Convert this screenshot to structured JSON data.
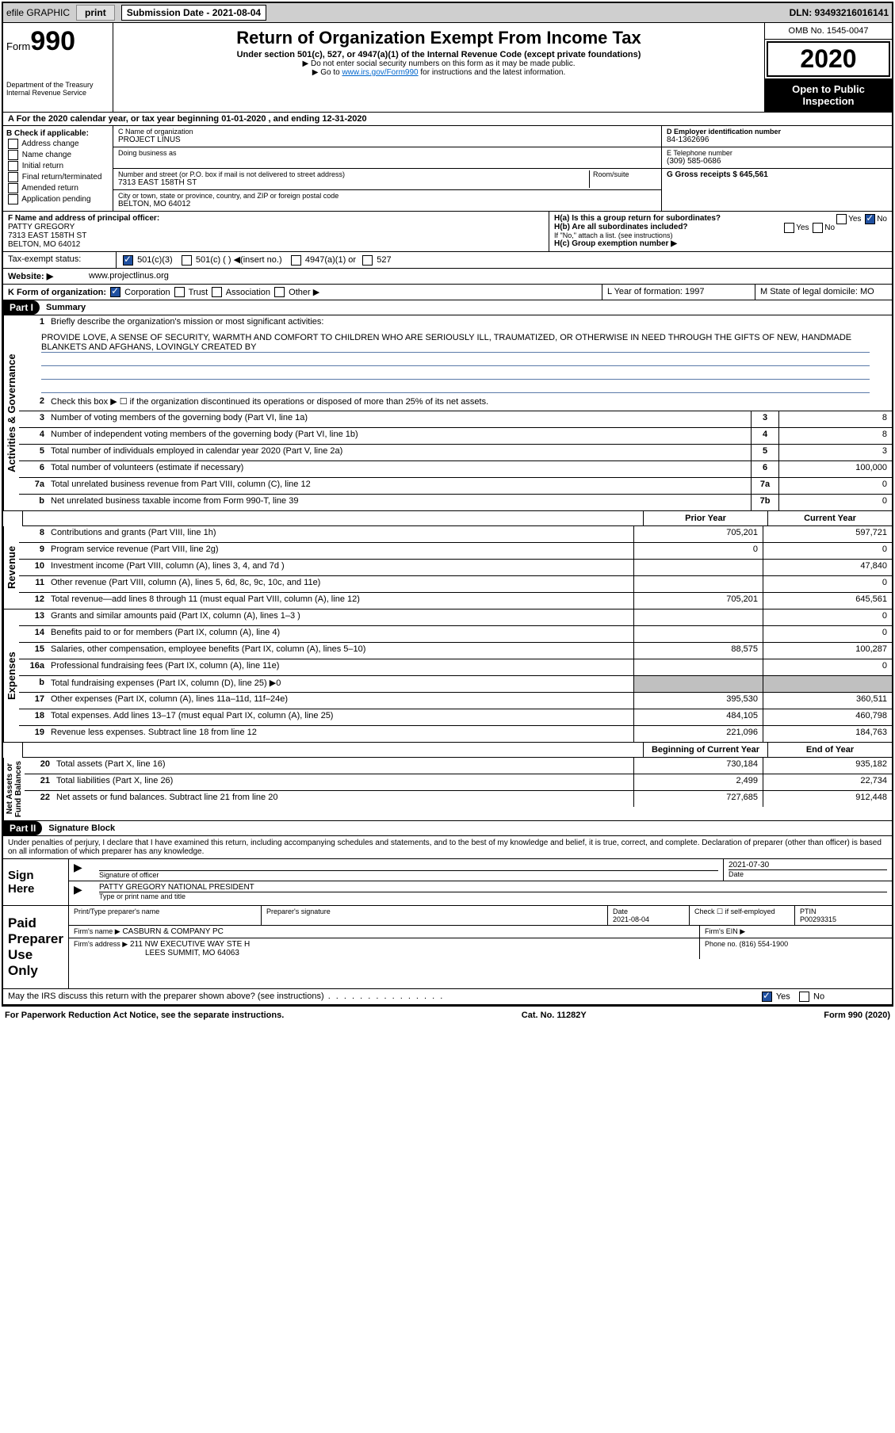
{
  "top_bar": {
    "efile_label": "efile GRAPHIC",
    "print_btn": "print",
    "sub_date_label": "Submission Date - 2021-08-04",
    "dln": "DLN: 93493216016141"
  },
  "header": {
    "form_label": "Form",
    "form_num": "990",
    "dept": "Department of the Treasury",
    "irs": "Internal Revenue Service",
    "title": "Return of Organization Exempt From Income Tax",
    "subtitle": "Under section 501(c), 527, or 4947(a)(1) of the Internal Revenue Code (except private foundations)",
    "note1": "▶ Do not enter social security numbers on this form as it may be made public.",
    "note2_pre": "▶ Go to ",
    "note2_link": "www.irs.gov/Form990",
    "note2_post": " for instructions and the latest information.",
    "omb": "OMB No. 1545-0047",
    "year": "2020",
    "open_insp": "Open to Public Inspection"
  },
  "row_a": "A For the 2020 calendar year, or tax year beginning 01-01-2020   , and ending 12-31-2020",
  "box_b": {
    "label": "B Check if applicable:",
    "opts": [
      "Address change",
      "Name change",
      "Initial return",
      "Final return/terminated",
      "Amended return",
      "Application pending"
    ]
  },
  "box_c": {
    "c_label": "C Name of organization",
    "c_val": "PROJECT LINUS",
    "dba_label": "Doing business as",
    "dba_val": "",
    "addr_label": "Number and street (or P.O. box if mail is not delivered to street address)",
    "room_label": "Room/suite",
    "addr_val": "7313 EAST 158TH ST",
    "city_label": "City or town, state or province, country, and ZIP or foreign postal code",
    "city_val": "BELTON, MO  64012"
  },
  "box_d": {
    "label": "D Employer identification number",
    "val": "84-1362696"
  },
  "box_e": {
    "label": "E Telephone number",
    "val": "(309) 585-0686"
  },
  "box_g": {
    "label": "G Gross receipts $ 645,561"
  },
  "box_f": {
    "label": "F  Name and address of principal officer:",
    "name": "PATTY GREGORY",
    "addr1": "7313 EAST 158TH ST",
    "addr2": "BELTON, MO  64012"
  },
  "box_h": {
    "ha": "H(a)  Is this a group return for subordinates?",
    "ha_yes": "Yes",
    "ha_no": "No",
    "hb": "H(b)  Are all subordinates included?",
    "hb_note": "If \"No,\" attach a list. (see instructions)",
    "hc": "H(c)  Group exemption number ▶"
  },
  "tax_status": {
    "label": "Tax-exempt status:",
    "c3": "501(c)(3)",
    "c_other": "501(c) (  ) ◀(insert no.)",
    "a1": "4947(a)(1) or",
    "s527": "527"
  },
  "website": {
    "label": "Website: ▶",
    "val": "www.projectlinus.org"
  },
  "row_k": {
    "label": "K Form of organization:",
    "corp": "Corporation",
    "trust": "Trust",
    "assoc": "Association",
    "other": "Other ▶"
  },
  "row_l": {
    "label": "L Year of formation: 1997"
  },
  "row_m": {
    "label": "M State of legal domicile: MO"
  },
  "part1": {
    "hdr": "Part I",
    "title": "Summary"
  },
  "mission": {
    "num": "1",
    "label": "Briefly describe the organization's mission or most significant activities:",
    "text": "PROVIDE LOVE, A SENSE OF SECURITY, WARMTH AND COMFORT TO CHILDREN WHO ARE SERIOUSLY ILL, TRAUMATIZED, OR OTHERWISE IN NEED THROUGH THE GIFTS OF NEW, HANDMADE BLANKETS AND AFGHANS, LOVINGLY CREATED BY"
  },
  "gov_lines": [
    {
      "n": "2",
      "d": "Check this box ▶ ☐  if the organization discontinued its operations or disposed of more than 25% of its net assets."
    },
    {
      "n": "3",
      "d": "Number of voting members of the governing body (Part VI, line 1a)",
      "box": "3",
      "v": "8"
    },
    {
      "n": "4",
      "d": "Number of independent voting members of the governing body (Part VI, line 1b)",
      "box": "4",
      "v": "8"
    },
    {
      "n": "5",
      "d": "Total number of individuals employed in calendar year 2020 (Part V, line 2a)",
      "box": "5",
      "v": "3"
    },
    {
      "n": "6",
      "d": "Total number of volunteers (estimate if necessary)",
      "box": "6",
      "v": "100,000"
    },
    {
      "n": "7a",
      "d": "Total unrelated business revenue from Part VIII, column (C), line 12",
      "box": "7a",
      "v": "0"
    },
    {
      "n": "b",
      "d": "Net unrelated business taxable income from Form 990-T, line 39",
      "box": "7b",
      "v": "0"
    }
  ],
  "col_hdrs": {
    "prior": "Prior Year",
    "current": "Current Year"
  },
  "rev_lines": [
    {
      "n": "8",
      "d": "Contributions and grants (Part VIII, line 1h)",
      "p": "705,201",
      "c": "597,721"
    },
    {
      "n": "9",
      "d": "Program service revenue (Part VIII, line 2g)",
      "p": "0",
      "c": "0"
    },
    {
      "n": "10",
      "d": "Investment income (Part VIII, column (A), lines 3, 4, and 7d )",
      "p": "",
      "c": "47,840"
    },
    {
      "n": "11",
      "d": "Other revenue (Part VIII, column (A), lines 5, 6d, 8c, 9c, 10c, and 11e)",
      "p": "",
      "c": "0"
    },
    {
      "n": "12",
      "d": "Total revenue—add lines 8 through 11 (must equal Part VIII, column (A), line 12)",
      "p": "705,201",
      "c": "645,561"
    }
  ],
  "exp_lines": [
    {
      "n": "13",
      "d": "Grants and similar amounts paid (Part IX, column (A), lines 1–3 )",
      "p": "",
      "c": "0"
    },
    {
      "n": "14",
      "d": "Benefits paid to or for members (Part IX, column (A), line 4)",
      "p": "",
      "c": "0"
    },
    {
      "n": "15",
      "d": "Salaries, other compensation, employee benefits (Part IX, column (A), lines 5–10)",
      "p": "88,575",
      "c": "100,287"
    },
    {
      "n": "16a",
      "d": "Professional fundraising fees (Part IX, column (A), line 11e)",
      "p": "",
      "c": "0"
    },
    {
      "n": "b",
      "d": "Total fundraising expenses (Part IX, column (D), line 25) ▶0",
      "p": "",
      "c": "",
      "shade": true
    },
    {
      "n": "17",
      "d": "Other expenses (Part IX, column (A), lines 11a–11d, 11f–24e)",
      "p": "395,530",
      "c": "360,511"
    },
    {
      "n": "18",
      "d": "Total expenses. Add lines 13–17 (must equal Part IX, column (A), line 25)",
      "p": "484,105",
      "c": "460,798"
    },
    {
      "n": "19",
      "d": "Revenue less expenses. Subtract line 18 from line 12",
      "p": "221,096",
      "c": "184,763"
    }
  ],
  "net_hdrs": {
    "begin": "Beginning of Current Year",
    "end": "End of Year"
  },
  "net_lines": [
    {
      "n": "20",
      "d": "Total assets (Part X, line 16)",
      "p": "730,184",
      "c": "935,182"
    },
    {
      "n": "21",
      "d": "Total liabilities (Part X, line 26)",
      "p": "2,499",
      "c": "22,734"
    },
    {
      "n": "22",
      "d": "Net assets or fund balances. Subtract line 21 from line 20",
      "p": "727,685",
      "c": "912,448"
    }
  ],
  "part2": {
    "hdr": "Part II",
    "title": "Signature Block"
  },
  "sig_decl": "Under penalties of perjury, I declare that I have examined this return, including accompanying schedules and statements, and to the best of my knowledge and belief, it is true, correct, and complete. Declaration of preparer (other than officer) is based on all information of which preparer has any knowledge.",
  "sign_here": {
    "label": "Sign Here",
    "sig_label": "Signature of officer",
    "date_label": "Date",
    "date_val": "2021-07-30",
    "name": "PATTY GREGORY  NATIONAL PRESIDENT",
    "name_label": "Type or print name and title"
  },
  "paid_prep": {
    "label": "Paid Preparer Use Only",
    "h1": "Print/Type preparer's name",
    "h2": "Preparer's signature",
    "h3": "Date",
    "h3v": "2021-08-04",
    "h4": "Check ☐ if self-employed",
    "h5": "PTIN",
    "h5v": "P00293315",
    "firm_label": "Firm's name   ▶",
    "firm": "CASBURN & COMPANY PC",
    "ein_label": "Firm's EIN ▶",
    "addr_label": "Firm's address ▶",
    "addr1": "211 NW EXECUTIVE WAY STE H",
    "addr2": "LEES SUMMIT, MO  64063",
    "phone_label": "Phone no. (816) 554-1900"
  },
  "discuss": {
    "q": "May the IRS discuss this return with the preparer shown above? (see instructions)",
    "yes": "Yes",
    "no": "No"
  },
  "footer": {
    "left": "For Paperwork Reduction Act Notice, see the separate instructions.",
    "mid": "Cat. No. 11282Y",
    "right": "Form 990 (2020)"
  },
  "colors": {
    "link": "#0066cc",
    "rule": "#5a7aa8"
  }
}
